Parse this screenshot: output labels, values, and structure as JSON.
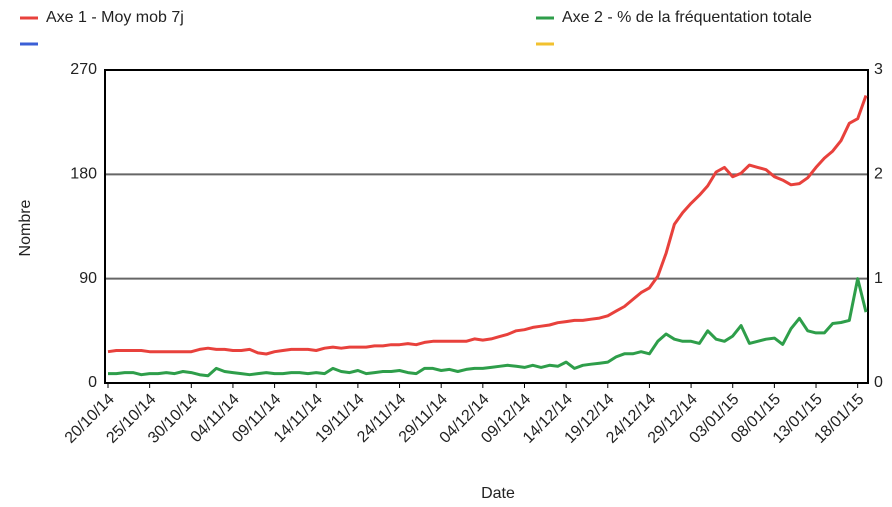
{
  "chart_data": {
    "type": "line",
    "x_label": "Date",
    "y_label": "Nombre",
    "categories": [
      "20/10/14",
      null,
      null,
      null,
      null,
      "25/10/14",
      null,
      null,
      null,
      null,
      "30/10/14",
      null,
      null,
      null,
      null,
      "04/11/14",
      null,
      null,
      null,
      null,
      "09/11/14",
      null,
      null,
      null,
      null,
      "14/11/14",
      null,
      null,
      null,
      null,
      "19/11/14",
      null,
      null,
      null,
      null,
      "24/11/14",
      null,
      null,
      null,
      null,
      "29/11/14",
      null,
      null,
      null,
      null,
      "04/12/14",
      null,
      null,
      null,
      null,
      "09/12/14",
      null,
      null,
      null,
      null,
      "14/12/14",
      null,
      null,
      null,
      null,
      "19/12/14",
      null,
      null,
      null,
      null,
      "24/12/14",
      null,
      null,
      null,
      null,
      "29/12/14",
      null,
      null,
      null,
      null,
      "03/01/15",
      null,
      null,
      null,
      null,
      "08/01/15",
      null,
      null,
      null,
      null,
      "13/01/15",
      null,
      null,
      null,
      null,
      "18/01/15",
      null
    ],
    "series": [
      {
        "name": "Axe 1 - Moy mob 7j",
        "color": "#e8413c",
        "values": [
          27,
          28,
          28,
          28,
          28,
          27,
          27,
          27,
          27,
          27,
          27,
          29,
          30,
          29,
          29,
          28,
          28,
          29,
          26,
          25,
          27,
          28,
          29,
          29,
          29,
          28,
          30,
          31,
          30,
          31,
          31,
          31,
          32,
          32,
          33,
          33,
          34,
          33,
          35,
          36,
          36,
          36,
          36,
          36,
          38,
          37,
          38,
          40,
          42,
          45,
          46,
          48,
          49,
          50,
          52,
          53,
          54,
          54,
          55,
          56,
          58,
          62,
          66,
          72,
          78,
          82,
          92,
          112,
          137,
          147,
          155,
          162,
          170,
          182,
          186,
          178,
          181,
          188,
          186,
          184,
          178,
          175,
          171,
          172,
          177,
          186,
          194,
          200,
          209,
          224,
          228,
          248
        ]
      },
      {
        "name": "Axe 2 - % de la fréquentation totale",
        "color": "#2e9e4a",
        "axis": "y2",
        "values": [
          0.09,
          0.09,
          0.1,
          0.1,
          0.08,
          0.09,
          0.09,
          0.1,
          0.09,
          0.11,
          0.1,
          0.08,
          0.07,
          0.14,
          0.11,
          0.1,
          0.09,
          0.08,
          0.09,
          0.1,
          0.09,
          0.09,
          0.1,
          0.1,
          0.09,
          0.1,
          0.09,
          0.14,
          0.11,
          0.1,
          0.12,
          0.09,
          0.1,
          0.11,
          0.11,
          0.12,
          0.1,
          0.09,
          0.14,
          0.14,
          0.12,
          0.13,
          0.11,
          0.13,
          0.14,
          0.14,
          0.15,
          0.16,
          0.17,
          0.16,
          0.15,
          0.17,
          0.15,
          0.17,
          0.16,
          0.2,
          0.14,
          0.17,
          0.18,
          0.19,
          0.2,
          0.25,
          0.28,
          0.28,
          0.3,
          0.28,
          0.4,
          0.47,
          0.42,
          0.4,
          0.4,
          0.38,
          0.5,
          0.42,
          0.4,
          0.45,
          0.55,
          0.38,
          0.4,
          0.42,
          0.43,
          0.37,
          0.52,
          0.62,
          0.5,
          0.48,
          0.48,
          0.57,
          0.58,
          0.6,
          1.0,
          0.68
        ]
      }
    ],
    "ylim": [
      0,
      270
    ],
    "yticks": [
      0,
      90,
      180,
      270
    ],
    "y2lim": [
      0,
      3
    ],
    "y2ticks": [
      0,
      1,
      2,
      3
    ],
    "grid": true,
    "legend": "top"
  }
}
